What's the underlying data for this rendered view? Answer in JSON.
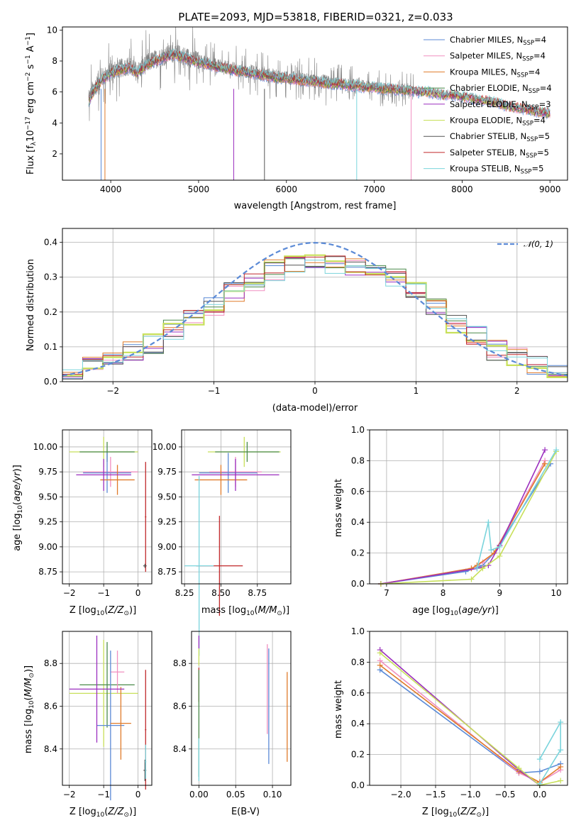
{
  "chart_data": [
    {
      "type": "line",
      "title": "PLATE=2093, MJD=53818, FIBERID=0321, z=0.033",
      "xlabel": "wavelength [Angstrom, rest frame]",
      "ylabel": "Flux [f_λ10⁻¹⁷ erg cm⁻² s⁻¹ A⁻¹]",
      "xlim": [
        3450,
        9200
      ],
      "ylim": [
        0.3,
        10.2
      ],
      "xticks": [
        "4000",
        "5000",
        "6000",
        "7000",
        "8000",
        "9000"
      ],
      "yticks": [
        "2",
        "4",
        "6",
        "8",
        "10"
      ],
      "grid": false,
      "legend_position": "top-right",
      "legend": [
        {
          "label": "Chabrier MILES, N_SSP=4",
          "main": "Chabrier MILES, N",
          "sub": "SSP",
          "tail": "=4",
          "color": "#5b8ad6"
        },
        {
          "label": "Salpeter MILES, N_SSP=4",
          "main": "Salpeter MILES, N",
          "sub": "SSP",
          "tail": "=4",
          "color": "#f08fc0"
        },
        {
          "label": "Kroupa MILES, N_SSP=4",
          "main": "Kroupa MILES, N",
          "sub": "SSP",
          "tail": "=4",
          "color": "#e07b2a"
        },
        {
          "label": "Chabrier ELODIE, N_SSP=4",
          "main": "Chabrier ELODIE, N",
          "sub": "SSP",
          "tail": "=4",
          "color": "#4a8a4a"
        },
        {
          "label": "Salpeter ELODIE, N_SSP=3",
          "main": "Salpeter ELODIE, N",
          "sub": "SSP",
          "tail": "=3",
          "color": "#9b2fbf"
        },
        {
          "label": "Kroupa ELODIE, N_SSP=4",
          "main": "Kroupa ELODIE, N",
          "sub": "SSP",
          "tail": "=4",
          "color": "#c8e05a"
        },
        {
          "label": "Chabrier STELIB, N_SSP=5",
          "main": "Chabrier STELIB, N",
          "sub": "SSP",
          "tail": "=5",
          "color": "#555555"
        },
        {
          "label": "Salpeter STELIB, N_SSP=5",
          "main": "Salpeter STELIB, N",
          "sub": "SSP",
          "tail": "=5",
          "color": "#c0282a"
        },
        {
          "label": "Kroupa STELIB, N_SSP=5",
          "main": "Kroupa STELIB, N",
          "sub": "SSP",
          "tail": "=5",
          "color": "#7ad4dc"
        }
      ],
      "observed_color": "#808080",
      "series": [
        {
          "name": "data",
          "x": [
            3750,
            3800,
            3900,
            4000,
            4100,
            4200,
            4300,
            4400,
            4500,
            4600,
            4700,
            4800,
            4900,
            5000,
            5100,
            5200,
            5300,
            5400,
            5500,
            5600,
            5700,
            5800,
            5900,
            6000,
            6100,
            6200,
            6300,
            6400,
            6500,
            6600,
            6700,
            6800,
            6900,
            7000,
            7100,
            7200,
            7300,
            7400,
            7500,
            7600,
            7700,
            7800,
            7900,
            8000,
            8100,
            8200,
            8300,
            8400,
            8500,
            8600,
            8700,
            8800,
            8900,
            9000
          ],
          "y": [
            5.5,
            6.2,
            6.9,
            7.3,
            7.5,
            7.7,
            7.3,
            7.8,
            8.1,
            8.3,
            8.5,
            8.4,
            8.2,
            8.0,
            7.9,
            7.7,
            7.6,
            7.5,
            7.3,
            7.3,
            7.2,
            7.1,
            7.0,
            6.9,
            6.9,
            6.8,
            6.7,
            6.7,
            6.6,
            6.6,
            6.5,
            6.5,
            6.4,
            6.3,
            6.3,
            6.2,
            6.2,
            6.1,
            6.1,
            6.0,
            6.0,
            5.9,
            5.8,
            5.7,
            5.6,
            5.5,
            5.4,
            5.3,
            5.1,
            5.0,
            4.9,
            4.8,
            4.7,
            4.6
          ]
        },
        {
          "name": "model",
          "x": [
            3750,
            3800,
            3900,
            4000,
            4100,
            4200,
            4300,
            4400,
            4500,
            4600,
            4700,
            4800,
            4900,
            5000,
            5100,
            5200,
            5300,
            5400,
            5500,
            5600,
            5700,
            5800,
            5900,
            6000,
            6100,
            6200,
            6300,
            6400,
            6500,
            6600,
            6700,
            6800,
            6900,
            7000,
            7100,
            7200,
            7300,
            7400,
            7500,
            7600,
            7700,
            7800,
            7900,
            8000,
            8100,
            8200,
            8300,
            8400,
            8500,
            8600,
            8700,
            8800,
            8900,
            9000
          ],
          "y": [
            5.4,
            6.0,
            6.8,
            7.2,
            7.4,
            7.6,
            7.2,
            7.7,
            8.0,
            8.2,
            8.4,
            8.3,
            8.1,
            7.9,
            7.8,
            7.6,
            7.5,
            7.4,
            7.3,
            7.2,
            7.1,
            7.0,
            6.9,
            6.9,
            6.8,
            6.7,
            6.7,
            6.6,
            6.5,
            6.5,
            6.4,
            6.4,
            6.3,
            6.3,
            6.2,
            6.2,
            6.1,
            6.1,
            6.0,
            6.0,
            5.9,
            5.8,
            5.8,
            5.7,
            5.6,
            5.5,
            5.4,
            5.3,
            5.1,
            5.0,
            4.9,
            4.8,
            4.7,
            4.6
          ]
        }
      ],
      "masked_lines_x": [
        3890,
        3934,
        5400,
        5750,
        6800,
        7420
      ]
    },
    {
      "type": "line",
      "xlabel": "(data-model)/error",
      "ylabel": "Normed distribution",
      "xlim": [
        -2.5,
        2.5
      ],
      "ylim": [
        0,
        0.44
      ],
      "xticks": [
        "−2",
        "−1",
        "0",
        "1",
        "2"
      ],
      "yticks": [
        "0.0",
        "0.1",
        "0.2",
        "0.3",
        "0.4"
      ],
      "grid": true,
      "legend_position": "top-right",
      "legend": [
        {
          "label": "𝒩(0, 1)",
          "color": "#5b8ad6"
        }
      ],
      "bin_centers": [
        -2.4,
        -2.2,
        -2.0,
        -1.8,
        -1.6,
        -1.4,
        -1.2,
        -1.0,
        -0.8,
        -0.6,
        -0.4,
        -0.2,
        0.0,
        0.2,
        0.4,
        0.6,
        0.8,
        1.0,
        1.2,
        1.4,
        1.6,
        1.8,
        2.0,
        2.2,
        2.4
      ],
      "histogram_values": [
        0.03,
        0.05,
        0.06,
        0.09,
        0.11,
        0.15,
        0.19,
        0.22,
        0.26,
        0.29,
        0.32,
        0.34,
        0.35,
        0.34,
        0.33,
        0.32,
        0.3,
        0.26,
        0.21,
        0.17,
        0.13,
        0.09,
        0.07,
        0.05,
        0.04
      ],
      "curve_mean": 0,
      "curve_sigma": 1
    },
    {
      "type": "scatter",
      "xlabel": "Z [log₁₀(Z/Z⊙)]",
      "ylabel": "age  [log₁₀(age/yr)]",
      "xlim": [
        -2.2,
        0.4
      ],
      "ylim": [
        8.63,
        10.17
      ],
      "xticks": [
        "−2",
        "−1",
        "0"
      ],
      "yticks": [
        "8.75",
        "9.00",
        "9.25",
        "9.50",
        "9.75",
        "10.00"
      ],
      "grid": true,
      "points": [
        {
          "x": -1.0,
          "y": 9.95,
          "xerr": 1.0,
          "yerr": 0.15,
          "color": "#c8e05a"
        },
        {
          "x": -0.9,
          "y": 9.95,
          "xerr": 0.8,
          "yerr": 0.1,
          "color": "#4a8a4a"
        },
        {
          "x": -0.8,
          "y": 9.75,
          "xerr": 0.8,
          "yerr": 0.15,
          "color": "#f08fc0"
        },
        {
          "x": -0.9,
          "y": 9.74,
          "xerr": 0.7,
          "yerr": 0.2,
          "color": "#5b8ad6"
        },
        {
          "x": -0.6,
          "y": 9.67,
          "xerr": 0.5,
          "yerr": 0.15,
          "color": "#e07b2a"
        },
        {
          "x": -1.0,
          "y": 9.72,
          "xerr": 0.8,
          "yerr": 0.16,
          "color": "#9b2fbf"
        },
        {
          "x": 0.22,
          "y": 9.3,
          "xerr": 0.02,
          "yerr": 0.55,
          "color": "#c0282a"
        },
        {
          "x": 0.2,
          "y": 8.81,
          "xerr": 0.05,
          "yerr": 0.02,
          "color": "#555555"
        }
      ]
    },
    {
      "type": "scatter",
      "xlabel": "mass [log₁₀(M/M⊙)]",
      "xlim": [
        8.23,
        8.98
      ],
      "ylim": [
        8.63,
        10.17
      ],
      "xticks": [
        "8.25",
        "8.50",
        "8.75"
      ],
      "yticks": [
        "8.75",
        "9.00",
        "9.25",
        "9.50",
        "9.75",
        "10.00"
      ],
      "grid": true,
      "points": [
        {
          "x": 8.66,
          "y": 9.95,
          "xerr": 0.25,
          "yerr": 0.15,
          "color": "#c8e05a"
        },
        {
          "x": 8.68,
          "y": 9.95,
          "xerr": 0.22,
          "yerr": 0.1,
          "color": "#4a8a4a"
        },
        {
          "x": 8.6,
          "y": 9.75,
          "xerr": 0.18,
          "yerr": 0.15,
          "color": "#f08fc0"
        },
        {
          "x": 8.55,
          "y": 9.74,
          "xerr": 0.2,
          "yerr": 0.2,
          "color": "#5b8ad6"
        },
        {
          "x": 8.5,
          "y": 9.67,
          "xerr": 0.18,
          "yerr": 0.15,
          "color": "#e07b2a"
        },
        {
          "x": 8.6,
          "y": 9.72,
          "xerr": 0.3,
          "yerr": 0.16,
          "color": "#9b2fbf"
        },
        {
          "x": 8.49,
          "y": 8.81,
          "xerr": 0.16,
          "yerr": 0.5,
          "color": "#c0282a"
        },
        {
          "x": 8.35,
          "y": 8.81,
          "xerr": 0.1,
          "yerr": 0.9,
          "color": "#7ad4dc"
        }
      ]
    },
    {
      "type": "line",
      "xlabel": "age  [log₁₀(age/yr)]",
      "ylabel": "mass weight",
      "xlim": [
        6.7,
        10.2
      ],
      "ylim": [
        0,
        1.0
      ],
      "xticks": [
        "7",
        "8",
        "9",
        "10"
      ],
      "yticks": [
        "0.0",
        "0.2",
        "0.4",
        "0.6",
        "0.8",
        "1.0"
      ],
      "grid": true,
      "series": [
        {
          "name": "",
          "color": "#5b8ad6",
          "x": [
            6.9,
            8.4,
            8.7,
            8.9,
            9.9
          ],
          "y": [
            0.0,
            0.08,
            0.12,
            0.2,
            0.78
          ]
        },
        {
          "name": "",
          "color": "#f08fc0",
          "x": [
            6.9,
            8.5,
            8.7,
            8.9,
            9.8
          ],
          "y": [
            0.0,
            0.1,
            0.14,
            0.2,
            0.8
          ]
        },
        {
          "name": "",
          "color": "#e07b2a",
          "x": [
            6.9,
            8.5,
            8.6,
            8.9,
            9.8
          ],
          "y": [
            0.0,
            0.1,
            0.12,
            0.2,
            0.78
          ]
        },
        {
          "name": "",
          "color": "#9b2fbf",
          "x": [
            6.9,
            8.6,
            8.8,
            9.0,
            9.8
          ],
          "y": [
            0.0,
            0.1,
            0.12,
            0.25,
            0.87
          ]
        },
        {
          "name": "",
          "color": "#c8e05a",
          "x": [
            6.9,
            8.5,
            8.7,
            9.0,
            10.0
          ],
          "y": [
            0.0,
            0.03,
            0.1,
            0.18,
            0.86
          ]
        },
        {
          "name": "",
          "color": "#7ad4dc",
          "x": [
            8.6,
            8.8,
            8.85,
            9.0,
            10.0
          ],
          "y": [
            0.1,
            0.4,
            0.22,
            0.24,
            0.87
          ]
        }
      ]
    },
    {
      "type": "scatter",
      "xlabel": "Z [log₁₀(Z/Z⊙)]",
      "ylabel": "mass [log₁₀(M/M⊙)]",
      "xlim": [
        -2.2,
        0.4
      ],
      "ylim": [
        8.23,
        8.95
      ],
      "xticks": [
        "−2",
        "−1",
        "0"
      ],
      "yticks": [
        "8.4",
        "8.6",
        "8.8"
      ],
      "grid": true,
      "points": [
        {
          "x": -1.0,
          "y": 8.66,
          "xerr": 1.0,
          "yerr": 0.25,
          "color": "#c8e05a"
        },
        {
          "x": -0.9,
          "y": 8.7,
          "xerr": 0.8,
          "yerr": 0.2,
          "color": "#4a8a4a"
        },
        {
          "x": -0.6,
          "y": 8.76,
          "xerr": 0.2,
          "yerr": 0.1,
          "color": "#f08fc0"
        },
        {
          "x": -0.8,
          "y": 8.51,
          "xerr": 0.4,
          "yerr": 0.35,
          "color": "#5b8ad6"
        },
        {
          "x": -0.5,
          "y": 8.52,
          "xerr": 0.3,
          "yerr": 0.17,
          "color": "#e07b2a"
        },
        {
          "x": -1.2,
          "y": 8.68,
          "xerr": 0.8,
          "yerr": 0.25,
          "color": "#9b2fbf"
        },
        {
          "x": 0.22,
          "y": 8.49,
          "xerr": 0.02,
          "yerr": 0.28,
          "color": "#c0282a"
        },
        {
          "x": 0.2,
          "y": 8.3,
          "xerr": 0.04,
          "yerr": 0.05,
          "color": "#555555"
        },
        {
          "x": 0.22,
          "y": 8.34,
          "xerr": 0.02,
          "yerr": 0.08,
          "color": "#7ad4dc"
        }
      ]
    },
    {
      "type": "scatter",
      "xlabel": "E(B-V)",
      "xlim": [
        -0.01,
        0.125
      ],
      "ylim": [
        8.23,
        8.95
      ],
      "xticks": [
        "0.00",
        "0.05",
        "0.10"
      ],
      "yticks": [
        "8.4",
        "8.6",
        "8.8"
      ],
      "grid": true,
      "points": [
        {
          "x": 0.0,
          "y": 8.9,
          "yerr": 0.03,
          "color": "#9b2fbf"
        },
        {
          "x": 0.0,
          "y": 8.83,
          "yerr": 0.04,
          "color": "#c8e05a"
        },
        {
          "x": 0.0,
          "y": 8.7,
          "yerr": 0.08,
          "color": "#c0282a"
        },
        {
          "x": 0.0,
          "y": 8.52,
          "yerr": 0.25,
          "color": "#4a8a4a"
        },
        {
          "x": 0.0,
          "y": 8.35,
          "yerr": 0.1,
          "color": "#7ad4dc"
        },
        {
          "x": 0.093,
          "y": 8.68,
          "yerr": 0.21,
          "color": "#f08fc0"
        },
        {
          "x": 0.095,
          "y": 8.6,
          "yerr": 0.27,
          "color": "#5b8ad6"
        },
        {
          "x": 0.12,
          "y": 8.55,
          "yerr": 0.21,
          "color": "#e07b2a"
        }
      ]
    },
    {
      "type": "line",
      "xlabel": "Z [log₁₀(Z/Z⊙)]",
      "ylabel": "mass weight",
      "xlim": [
        -2.45,
        0.4
      ],
      "ylim": [
        0,
        1.0
      ],
      "xticks": [
        "−2.0",
        "−1.5",
        "−1.0",
        "−0.5",
        "0.0"
      ],
      "yticks": [
        "0.0",
        "0.2",
        "0.4",
        "0.6",
        "0.8",
        "1.0"
      ],
      "grid": true,
      "series": [
        {
          "name": "",
          "color": "#5b8ad6",
          "x": [
            -2.3,
            -0.3,
            0.0,
            0.3
          ],
          "y": [
            0.75,
            0.08,
            0.09,
            0.14
          ]
        },
        {
          "name": "",
          "color": "#f08fc0",
          "x": [
            -2.3,
            -0.3,
            0.0,
            0.3
          ],
          "y": [
            0.81,
            0.08,
            0.02,
            0.1
          ]
        },
        {
          "name": "",
          "color": "#e07b2a",
          "x": [
            -2.3,
            -0.3,
            0.0,
            0.3
          ],
          "y": [
            0.78,
            0.09,
            0.02,
            0.12
          ]
        },
        {
          "name": "",
          "color": "#9b2fbf",
          "x": [
            -2.3,
            -0.3,
            0.0
          ],
          "y": [
            0.88,
            0.1,
            0.0
          ]
        },
        {
          "name": "",
          "color": "#c8e05a",
          "x": [
            -2.3,
            -0.3,
            0.0,
            0.3
          ],
          "y": [
            0.86,
            0.11,
            0.0,
            0.03
          ]
        },
        {
          "name": "",
          "color": "#7ad4dc",
          "x": [
            0.0,
            0.3,
            0.3,
            0.0
          ],
          "y": [
            0.17,
            0.41,
            0.23,
            0.01
          ]
        }
      ]
    }
  ]
}
